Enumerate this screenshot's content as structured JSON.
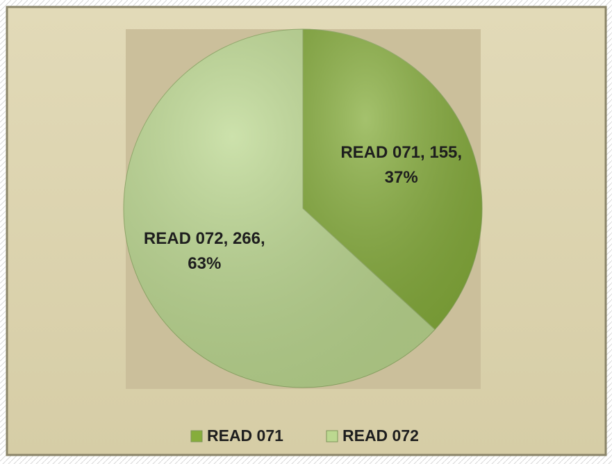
{
  "chart_data": {
    "type": "pie",
    "categories": [
      "READ 071",
      "READ 072"
    ],
    "values": [
      155,
      266
    ],
    "value_labels": [
      "READ 071, 155, 37%",
      "READ 072, 266, 63%"
    ],
    "colors": [
      "#86ad3c",
      "#bcd890"
    ],
    "legend": "bottom"
  }
}
